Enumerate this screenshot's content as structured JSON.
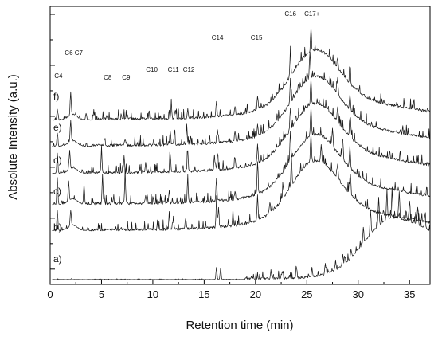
{
  "chart_data": {
    "type": "line",
    "title": "",
    "xlabel": "Retention time (min)",
    "ylabel": "Absolute Intensity (a.u.)",
    "xlim": [
      0,
      37
    ],
    "xticks": [
      0,
      5,
      10,
      15,
      20,
      25,
      30,
      35
    ],
    "y_ticks_labeled": false,
    "grid": false,
    "line_color": "#1a1a1a",
    "peak_annotations": [
      {
        "label": "C4",
        "x": 0.8
      },
      {
        "label": "C6 C7",
        "x": 2.3
      },
      {
        "label": "C8",
        "x": 5.6
      },
      {
        "label": "C9",
        "x": 7.4
      },
      {
        "label": "C10",
        "x": 9.9
      },
      {
        "label": "C11",
        "x": 12.0
      },
      {
        "label": "C12",
        "x": 13.5
      },
      {
        "label": "C14",
        "x": 16.3
      },
      {
        "label": "C15",
        "x": 20.1
      },
      {
        "label": "C16",
        "x": 23.4
      },
      {
        "label": "C17+",
        "x": 25.5
      }
    ],
    "series": [
      {
        "name": "a)",
        "peaks": [
          [
            16.2,
            0.55
          ],
          [
            16.6,
            0.5
          ],
          [
            19.6,
            0.1
          ],
          [
            21.5,
            0.3
          ],
          [
            22.6,
            0.35
          ],
          [
            24.0,
            0.45
          ],
          [
            25.5,
            0.42
          ],
          [
            26.8,
            0.5
          ],
          [
            27.8,
            0.4
          ],
          [
            28.5,
            0.5
          ],
          [
            29.3,
            0.4
          ],
          [
            30.5,
            0.7
          ],
          [
            31.2,
            1.1
          ],
          [
            32.0,
            1.3
          ],
          [
            32.8,
            1.2
          ],
          [
            33.3,
            1.3
          ],
          [
            34.0,
            1.2
          ],
          [
            35.0,
            0.9
          ],
          [
            35.8,
            0.8
          ],
          [
            36.5,
            0.6
          ]
        ]
      },
      {
        "name": "b)",
        "peaks": [
          [
            0.7,
            0.9
          ],
          [
            2.0,
            0.7
          ],
          [
            11.6,
            0.6
          ],
          [
            12.0,
            0.55
          ],
          [
            13.2,
            0.5
          ],
          [
            16.2,
            1.0
          ],
          [
            16.4,
            0.9
          ],
          [
            17.8,
            0.5
          ],
          [
            20.2,
            1.1
          ],
          [
            21.4,
            0.5
          ],
          [
            22.7,
            0.5
          ],
          [
            23.5,
            1.25
          ],
          [
            25.4,
            1.3
          ],
          [
            26.4,
            0.8
          ],
          [
            28.0,
            0.7
          ],
          [
            29.2,
            0.8
          ]
        ]
      },
      {
        "name": "c)",
        "peaks": [
          [
            0.7,
            1.2
          ],
          [
            1.8,
            0.9
          ],
          [
            3.3,
            0.9
          ],
          [
            5.1,
            1.2
          ],
          [
            7.3,
            1.2
          ],
          [
            9.3,
            0.4
          ],
          [
            11.6,
            0.6
          ],
          [
            13.4,
            0.9
          ],
          [
            16.2,
            1.0
          ],
          [
            18.0,
            0.4
          ],
          [
            20.2,
            1.4
          ],
          [
            23.4,
            1.35
          ],
          [
            25.4,
            1.3
          ],
          [
            27.5,
            0.8
          ],
          [
            28.5,
            0.9
          ],
          [
            29.2,
            1.0
          ]
        ]
      },
      {
        "name": "d)",
        "peaks": [
          [
            0.7,
            0.9
          ],
          [
            1.9,
            0.85
          ],
          [
            5.0,
            0.95
          ],
          [
            7.2,
            0.7
          ],
          [
            9.3,
            0.4
          ],
          [
            11.7,
            0.8
          ],
          [
            13.4,
            0.9
          ],
          [
            16.0,
            0.7
          ],
          [
            16.3,
            0.7
          ],
          [
            18.0,
            0.5
          ],
          [
            20.2,
            0.8
          ],
          [
            23.4,
            1.0
          ],
          [
            25.4,
            1.2
          ],
          [
            28.0,
            0.7
          ],
          [
            29.2,
            0.8
          ]
        ]
      },
      {
        "name": "e)",
        "peaks": [
          [
            0.7,
            0.6
          ],
          [
            2.0,
            0.95
          ],
          [
            5.3,
            0.3
          ],
          [
            7.3,
            0.3
          ],
          [
            11.7,
            0.6
          ],
          [
            12.1,
            0.5
          ],
          [
            13.3,
            0.5
          ],
          [
            16.3,
            0.55
          ],
          [
            18.0,
            0.45
          ],
          [
            20.2,
            0.5
          ],
          [
            23.4,
            0.9
          ],
          [
            25.3,
            1.2
          ],
          [
            28.0,
            0.7
          ],
          [
            29.2,
            0.7
          ]
        ]
      },
      {
        "name": "f)",
        "peaks": [
          [
            0.7,
            0.5
          ],
          [
            2.0,
            1.05
          ],
          [
            3.5,
            0.3
          ],
          [
            5.5,
            0.2
          ],
          [
            7.5,
            0.2
          ],
          [
            11.8,
            0.5
          ],
          [
            12.2,
            0.4
          ],
          [
            13.4,
            0.4
          ],
          [
            16.2,
            0.7
          ],
          [
            18.0,
            0.4
          ],
          [
            20.2,
            0.6
          ],
          [
            23.4,
            1.0
          ],
          [
            25.4,
            0.95
          ],
          [
            28.0,
            0.5
          ],
          [
            29.2,
            0.55
          ]
        ]
      }
    ]
  }
}
